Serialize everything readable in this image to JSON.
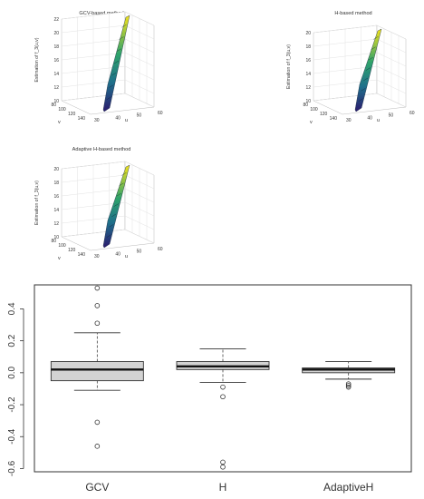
{
  "chart_data": [
    {
      "type": "surface3d",
      "title": "GCV-based method",
      "zlabel": "Estimation of f_3(u,v)",
      "xlabel": "u",
      "ylabel": "v",
      "zticks": [
        "10",
        "12",
        "14",
        "16",
        "18",
        "20",
        "22"
      ],
      "uticks": [
        "30",
        "40",
        "50",
        "60"
      ],
      "vticks": [
        "80",
        "100",
        "120",
        "140"
      ]
    },
    {
      "type": "surface3d",
      "title": "H-based method",
      "zlabel": "Estimation of f_3(u,v)",
      "xlabel": "u",
      "ylabel": "v",
      "zticks": [
        "10",
        "12",
        "14",
        "16",
        "18",
        "20"
      ],
      "uticks": [
        "30",
        "40",
        "50",
        "60"
      ],
      "vticks": [
        "80",
        "100",
        "120",
        "140"
      ]
    },
    {
      "type": "surface3d",
      "title": "Adaptive H-based method",
      "zlabel": "Estimation of f_3(u,v)",
      "xlabel": "u",
      "ylabel": "v",
      "zticks": [
        "10",
        "12",
        "14",
        "16",
        "18",
        "20"
      ],
      "uticks": [
        "30",
        "40",
        "50",
        "60"
      ],
      "vticks": [
        "80",
        "100",
        "120",
        "140"
      ]
    },
    {
      "type": "boxplot",
      "categories": [
        "GCV",
        "H",
        "AdaptiveH"
      ],
      "ylim": [
        -0.62,
        0.55
      ],
      "yticks": [
        "-0.6",
        "-0.4",
        "-0.2",
        "0.0",
        "0.2",
        "0.4"
      ],
      "ytick_values": [
        -0.6,
        -0.4,
        -0.2,
        0.0,
        0.2,
        0.4
      ],
      "boxes": [
        {
          "whisker_low": -0.11,
          "q1": -0.05,
          "median": 0.02,
          "q3": 0.07,
          "whisker_high": 0.25,
          "outliers": [
            0.53,
            0.42,
            0.31,
            -0.31,
            -0.46
          ]
        },
        {
          "whisker_low": -0.06,
          "q1": 0.02,
          "median": 0.04,
          "q3": 0.07,
          "whisker_high": 0.15,
          "outliers": [
            -0.09,
            -0.15,
            -0.56,
            -0.59
          ]
        },
        {
          "whisker_low": -0.04,
          "q1": 0.0,
          "median": 0.02,
          "q3": 0.03,
          "whisker_high": 0.07,
          "outliers": [
            -0.07,
            -0.08,
            -0.09
          ]
        }
      ],
      "box_fill": "#d3d3d3"
    }
  ]
}
